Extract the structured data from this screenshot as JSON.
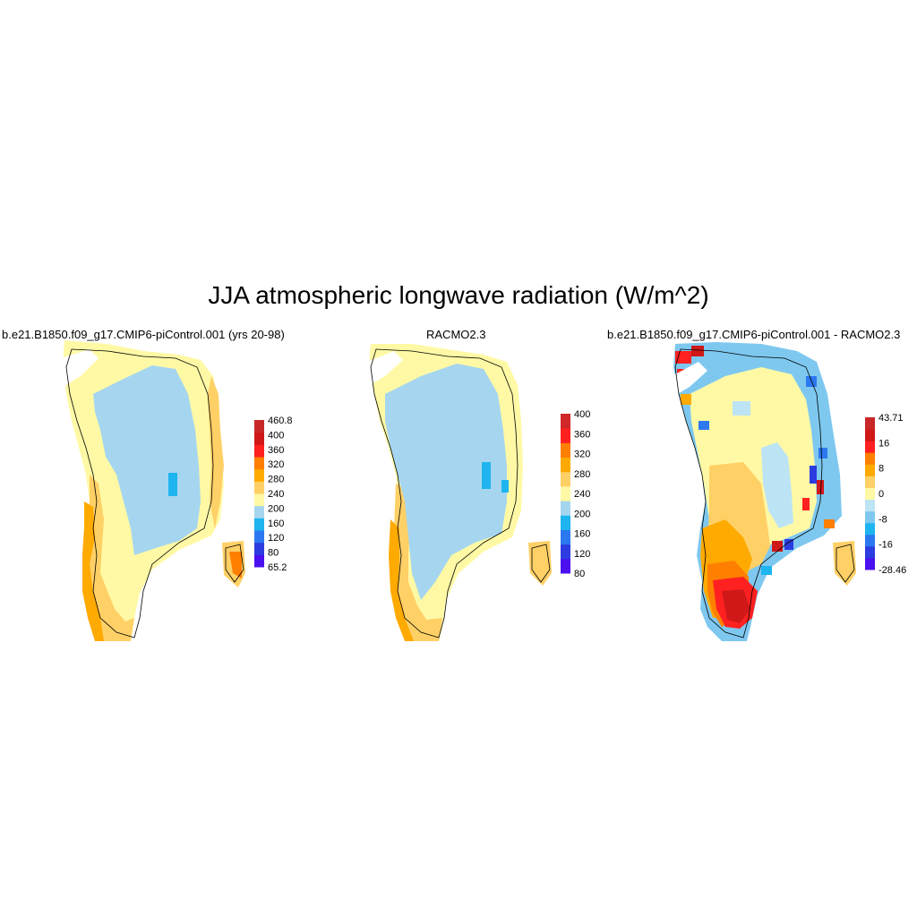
{
  "title": "JJA atmospheric longwave radiation (W/m^2)",
  "colors": {
    "ice": "#a6d6ef",
    "pale_yellow": "#fff9a5",
    "light_orange": "#ffd066",
    "orange": "#ffaa00",
    "deep_orange": "#ff7f00",
    "red": "#ff2020",
    "dark_red": "#d01818",
    "sky": "#1eb4f0",
    "blue": "#2c78f0",
    "deep_blue": "#2d3ce0",
    "violet": "#4a10f0"
  },
  "panels": [
    {
      "title": "b.e21.B1850.f09_g17.CMIP6-piControl.001 (yrs 20-98)",
      "colorbar": {
        "colors": [
          "#4a10f0",
          "#2d3ce0",
          "#2c78f0",
          "#1eb4f0",
          "#a6d6ef",
          "#fff9a5",
          "#ffd066",
          "#ffaa00",
          "#ff7f00",
          "#ff2020",
          "#d01818",
          "#c82828"
        ],
        "labels": [
          "65.2",
          "80",
          "120",
          "160",
          "200",
          "240",
          "280",
          "320",
          "360",
          "400",
          "460.8"
        ]
      }
    },
    {
      "title": "RACMO2.3",
      "colorbar": {
        "colors": [
          "#4a10f0",
          "#2d3ce0",
          "#2c78f0",
          "#1eb4f0",
          "#a6d6ef",
          "#fff9a5",
          "#ffd066",
          "#ffaa00",
          "#ff7f00",
          "#ff2020",
          "#d02828"
        ],
        "labels": [
          "80",
          "120",
          "160",
          "200",
          "240",
          "280",
          "320",
          "360",
          "400"
        ]
      }
    },
    {
      "title": "b.e21.B1850.f09_g17.CMIP6-piControl.001 - RACMO2.3",
      "colorbar": {
        "colors": [
          "#4a10f0",
          "#2d3ce0",
          "#2c78f0",
          "#1eb4f0",
          "#7ec8f0",
          "#bde4f5",
          "#fff9a5",
          "#ffd066",
          "#ffaa00",
          "#ff7f00",
          "#ff2020",
          "#d01818",
          "#c82828"
        ],
        "labels": [
          "-28.46",
          "-16",
          "-8",
          "0",
          "8",
          "16",
          "43.71"
        ]
      }
    }
  ]
}
